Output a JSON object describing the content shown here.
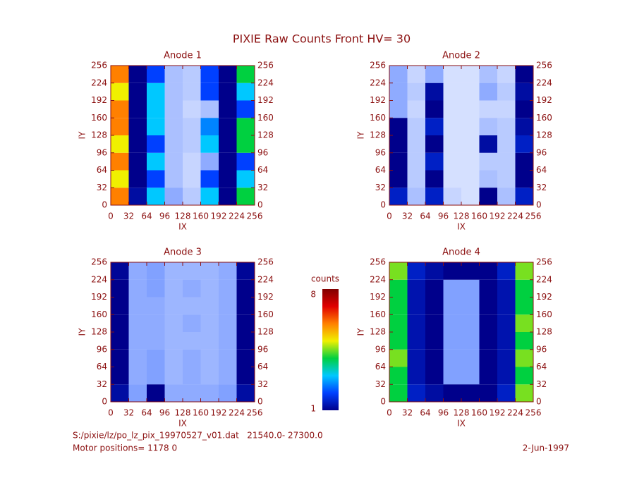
{
  "title": "PIXIE Raw Counts Front HV= 30",
  "footer": {
    "file": "S:/pixie/lz/po_lz_pix_19970527_v01.dat   21540.0- 27300.0",
    "motor": "Motor positions= 1178 0",
    "date": "2-Jun-1997"
  },
  "colorbar": {
    "label": "counts",
    "clim": [
      1,
      8
    ],
    "ticks": [
      1,
      8
    ],
    "colorscale": [
      "#00008b",
      "#0040ff",
      "#00c8ff",
      "#00d040",
      "#f0f000",
      "#ff8000",
      "#e00000",
      "#800000"
    ]
  },
  "chart_data": [
    {
      "type": "heatmap",
      "title": "Anode 1",
      "xlabel": "IX",
      "ylabel": "IY",
      "xlim": [
        0,
        256
      ],
      "ylim": [
        0,
        256
      ],
      "xticks": [
        0,
        32,
        64,
        96,
        128,
        160,
        192,
        224,
        256
      ],
      "yticks": [
        0,
        32,
        64,
        96,
        128,
        160,
        192,
        224,
        256
      ],
      "right_axis_labels": true,
      "z": [
        [
          6,
          1.2,
          3,
          0.8,
          0.5,
          3,
          1,
          4
        ],
        [
          5,
          1,
          2,
          0.6,
          0.4,
          2,
          1,
          3
        ],
        [
          6,
          1,
          3,
          0.6,
          0.4,
          0.8,
          1,
          2
        ],
        [
          5,
          1,
          2,
          0.6,
          0.5,
          3,
          1,
          4
        ],
        [
          6,
          1,
          3,
          0.6,
          0.5,
          2.5,
          1,
          4
        ],
        [
          6,
          1,
          3,
          0.6,
          0.4,
          0.6,
          1,
          2
        ],
        [
          5,
          1,
          3,
          0.6,
          0.5,
          2,
          1,
          3
        ],
        [
          6,
          1,
          2,
          0.6,
          0.5,
          2,
          1,
          4
        ]
      ]
    },
    {
      "type": "heatmap",
      "title": "Anode 2",
      "xlabel": "IX",
      "ylabel": "IY",
      "xlim": [
        0,
        256
      ],
      "ylim": [
        0,
        256
      ],
      "xticks": [
        0,
        32,
        64,
        96,
        128,
        160,
        192,
        224,
        256
      ],
      "yticks": [
        0,
        32,
        64,
        96,
        128,
        160,
        192,
        224,
        256
      ],
      "right_axis_labels": true,
      "z": [
        [
          1.5,
          0.6,
          1.5,
          0.4,
          0.3,
          1,
          0.6,
          1.5
        ],
        [
          1,
          0.5,
          1,
          0.3,
          0.3,
          0.6,
          0.5,
          1
        ],
        [
          1,
          0.5,
          1.5,
          0.3,
          0.3,
          0.5,
          0.5,
          1
        ],
        [
          1,
          0.5,
          1,
          0.3,
          0.3,
          1.2,
          0.5,
          1.5
        ],
        [
          1,
          0.5,
          1.5,
          0.3,
          0.3,
          0.6,
          0.5,
          1.2
        ],
        [
          0.8,
          0.4,
          1,
          0.3,
          0.3,
          0.4,
          0.4,
          1
        ],
        [
          0.8,
          0.5,
          1.2,
          0.3,
          0.3,
          0.8,
          0.5,
          1.2
        ],
        [
          0.8,
          0.4,
          0.8,
          0.3,
          0.3,
          0.6,
          0.4,
          1
        ]
      ]
    },
    {
      "type": "heatmap",
      "title": "Anode 3",
      "xlabel": "IX",
      "ylabel": "IY",
      "xlim": [
        0,
        256
      ],
      "ylim": [
        0,
        256
      ],
      "xticks": [
        0,
        32,
        64,
        96,
        128,
        160,
        192,
        224,
        256
      ],
      "yticks": [
        0,
        32,
        64,
        96,
        128,
        160,
        192,
        224,
        256
      ],
      "right_axis_labels": true,
      "z": [
        [
          1.2,
          0.9,
          1,
          0.8,
          0.8,
          0.8,
          0.9,
          1.2
        ],
        [
          1,
          0.8,
          0.9,
          0.7,
          0.8,
          0.7,
          0.8,
          1
        ],
        [
          1,
          0.8,
          0.9,
          0.7,
          0.8,
          0.7,
          0.8,
          1
        ],
        [
          1,
          0.8,
          0.8,
          0.7,
          0.7,
          0.7,
          0.8,
          1
        ],
        [
          1,
          0.8,
          0.8,
          0.7,
          0.8,
          0.7,
          0.8,
          1
        ],
        [
          1,
          0.8,
          0.8,
          0.7,
          0.7,
          0.7,
          0.8,
          1
        ],
        [
          1,
          0.8,
          0.9,
          0.7,
          0.8,
          0.7,
          0.8,
          1
        ],
        [
          1.1,
          0.8,
          0.9,
          0.7,
          0.7,
          0.7,
          0.8,
          1.1
        ]
      ]
    },
    {
      "type": "heatmap",
      "title": "Anode 4",
      "xlabel": "IX",
      "ylabel": "IY",
      "xlim": [
        0,
        256
      ],
      "ylim": [
        0,
        256
      ],
      "xticks": [
        0,
        32,
        64,
        96,
        128,
        160,
        192,
        224,
        256
      ],
      "yticks": [
        0,
        32,
        64,
        96,
        128,
        160,
        192,
        224,
        256
      ],
      "right_axis_labels": true,
      "z": [
        [
          4,
          1.5,
          1.2,
          1,
          1,
          1,
          1.5,
          4.5
        ],
        [
          4,
          1.3,
          1,
          0.9,
          0.9,
          1,
          1.3,
          4
        ],
        [
          4.5,
          1.3,
          1,
          0.9,
          0.9,
          1,
          1.3,
          4.5
        ],
        [
          4,
          1.3,
          1,
          0.9,
          0.9,
          1,
          1.3,
          4
        ],
        [
          4,
          1.3,
          1,
          0.9,
          0.9,
          1,
          1.3,
          4.5
        ],
        [
          4,
          1.3,
          1,
          0.9,
          0.9,
          1,
          1.3,
          4
        ],
        [
          4,
          1.3,
          1,
          0.9,
          0.9,
          1,
          1.3,
          4
        ],
        [
          4.5,
          1.5,
          1.2,
          1,
          1,
          1,
          1.5,
          4.5
        ]
      ]
    }
  ]
}
